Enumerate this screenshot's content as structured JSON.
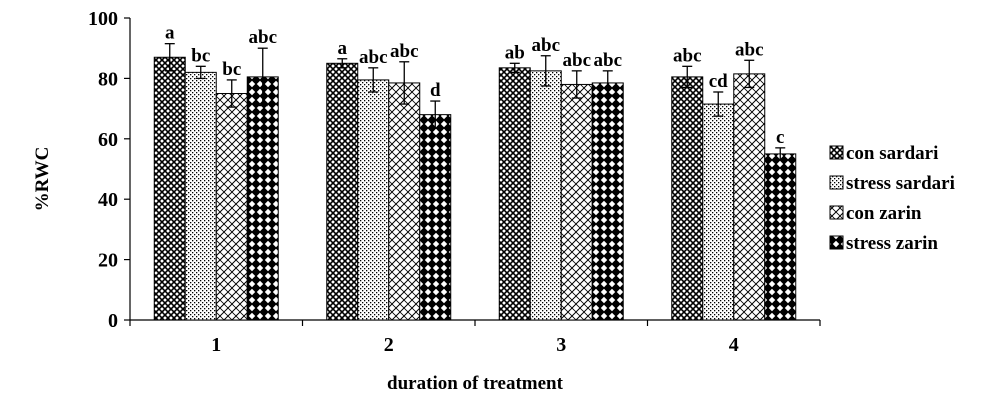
{
  "chart_data": {
    "type": "bar",
    "title": "",
    "xlabel": "duration  of treatment",
    "ylabel": "%RWC",
    "ylim": [
      0,
      100
    ],
    "yticks": [
      0,
      20,
      40,
      60,
      80,
      100
    ],
    "grid": false,
    "legend_position": "right",
    "categories": [
      "1",
      "2",
      "3",
      "4"
    ],
    "series": [
      {
        "name": "con sardari",
        "pattern": "crosshatch",
        "color": "#000000",
        "values": [
          87,
          85,
          83.5,
          80.5
        ],
        "errors": [
          4.5,
          1.5,
          1.5,
          3.5
        ],
        "labels": [
          "a",
          "a",
          "ab",
          "abc"
        ]
      },
      {
        "name": "stress sardari",
        "pattern": "dots",
        "color": "#000000",
        "values": [
          82,
          79.5,
          82.5,
          71.5
        ],
        "errors": [
          2,
          4,
          5,
          4
        ],
        "labels": [
          "bc",
          "abc",
          "abc",
          "cd"
        ]
      },
      {
        "name": "con zarin",
        "pattern": "diagonal-hatch",
        "color": "#000000",
        "values": [
          75,
          78.5,
          78,
          81.5
        ],
        "errors": [
          4.5,
          7,
          4.5,
          4.5
        ],
        "labels": [
          "bc",
          "abc",
          "abc",
          "abc"
        ]
      },
      {
        "name": "stress zarin",
        "pattern": "checker-diamond",
        "color": "#000000",
        "values": [
          80.5,
          68,
          78.5,
          55
        ],
        "errors": [
          9.5,
          4.5,
          4,
          2
        ],
        "labels": [
          "abc",
          "d",
          "abc",
          "c"
        ]
      }
    ]
  }
}
